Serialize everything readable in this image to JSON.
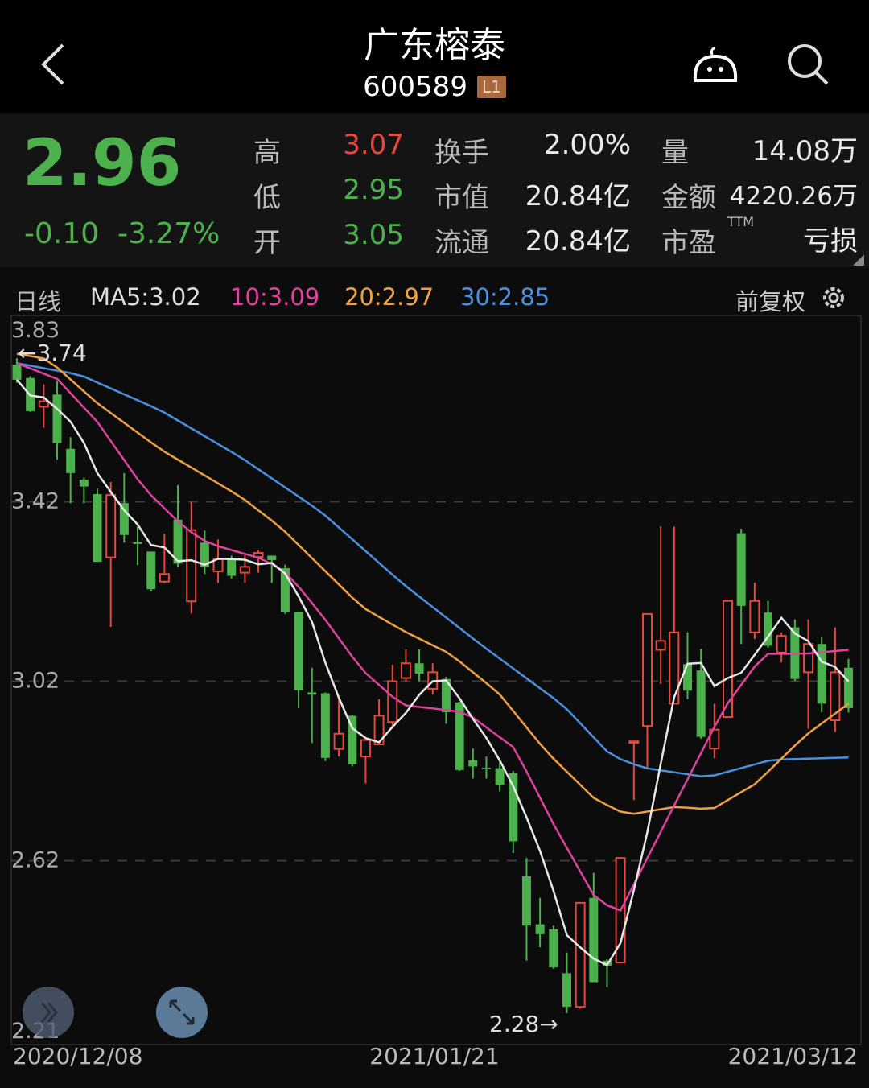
{
  "header": {
    "title": "广东榕泰",
    "code": "600589",
    "badge": "L1",
    "icons": [
      "back-chevron-icon",
      "robot-assistant-icon",
      "search-icon"
    ]
  },
  "quote": {
    "price": "2.96",
    "change": "-0.10",
    "change_pct": "-3.27%",
    "high_label": "高",
    "high": "3.07",
    "low_label": "低",
    "low": "2.95",
    "open_label": "开",
    "open": "3.05",
    "turnover_label": "换手",
    "turnover": "2.00%",
    "mktcap_label": "市值",
    "mktcap": "20.84亿",
    "float_label": "流通",
    "float": "20.84亿",
    "volume_label": "量",
    "volume": "14.08万",
    "amount_label": "金额",
    "amount": "4220.26万",
    "pe_label": "市盈",
    "pe_sup": "TTM",
    "pe": "亏损"
  },
  "colors": {
    "up": "#e8483c",
    "down": "#4cb04c",
    "ma5": "#e8e8e8",
    "ma10": "#e040a0",
    "ma20": "#f0a040",
    "ma30": "#4a90e0",
    "badge": "#a8693c"
  },
  "legend": {
    "period": "日线",
    "ma5": "MA5:3.02",
    "ma10": "10:3.09",
    "ma20": "20:2.97",
    "ma30": "30:2.85",
    "adjust": "前复权"
  },
  "chart_data": {
    "type": "candlestick",
    "ylim": [
      2.21,
      3.83
    ],
    "y_ticks": [
      "3.83",
      "3.42",
      "3.02",
      "2.62",
      "2.21"
    ],
    "grid": true,
    "x_labels": [
      "2020/12/08",
      "2021/01/21",
      "2021/03/12"
    ],
    "max_annotation": "←3.74",
    "min_annotation": "2.28→",
    "candles": [
      [
        3.726,
        3.692,
        3.74,
        3.685
      ],
      [
        3.696,
        3.622,
        3.7,
        3.62
      ],
      [
        3.632,
        3.644,
        3.682,
        3.585
      ],
      [
        3.659,
        3.551,
        3.689,
        3.514
      ],
      [
        3.538,
        3.484,
        3.564,
        3.417
      ],
      [
        3.469,
        3.454,
        3.474,
        3.417
      ],
      [
        3.437,
        3.286,
        3.45,
        3.286
      ],
      [
        3.296,
        3.435,
        3.464,
        3.141
      ],
      [
        3.417,
        3.346,
        3.484,
        3.329
      ],
      [
        3.33,
        3.326,
        3.366,
        3.279
      ],
      [
        3.309,
        3.225,
        3.309,
        3.22
      ],
      [
        3.242,
        3.259,
        3.349,
        3.239
      ],
      [
        3.38,
        3.282,
        3.457,
        3.275
      ],
      [
        3.198,
        3.357,
        3.42,
        3.171
      ],
      [
        3.329,
        3.275,
        3.356,
        3.259
      ],
      [
        3.265,
        3.292,
        3.336,
        3.239
      ],
      [
        3.292,
        3.255,
        3.3,
        3.249
      ],
      [
        3.262,
        3.275,
        3.302,
        3.239
      ],
      [
        3.297,
        3.306,
        3.312,
        3.262
      ],
      [
        3.3,
        3.29,
        3.3,
        3.239
      ],
      [
        3.272,
        3.175,
        3.28,
        3.17
      ],
      [
        3.175,
        3.0,
        3.175,
        2.96
      ],
      [
        2.995,
        2.99,
        3.05,
        2.882
      ],
      [
        2.993,
        2.849,
        2.995,
        2.842
      ],
      [
        2.869,
        2.903,
        2.98,
        2.852
      ],
      [
        2.943,
        2.835,
        2.945,
        2.83
      ],
      [
        2.852,
        2.889,
        2.889,
        2.792
      ],
      [
        2.879,
        2.943,
        2.98,
        2.879
      ],
      [
        2.929,
        3.02,
        3.057,
        2.92
      ],
      [
        3.027,
        3.06,
        3.091,
        3.02
      ],
      [
        3.06,
        3.037,
        3.091,
        3.02
      ],
      [
        3.003,
        3.04,
        3.06,
        2.99
      ],
      [
        3.025,
        2.951,
        3.03,
        2.925
      ],
      [
        2.973,
        2.822,
        2.975,
        2.82
      ],
      [
        2.844,
        2.83,
        2.87,
        2.803
      ],
      [
        2.827,
        2.825,
        2.852,
        2.803
      ],
      [
        2.826,
        2.789,
        2.844,
        2.774
      ],
      [
        2.815,
        2.663,
        2.82,
        2.637
      ],
      [
        2.585,
        2.475,
        2.626,
        2.397
      ],
      [
        2.478,
        2.456,
        2.537,
        2.427
      ],
      [
        2.467,
        2.382,
        2.475,
        2.379
      ],
      [
        2.369,
        2.294,
        2.415,
        2.28
      ],
      [
        2.294,
        2.526,
        2.526,
        2.29
      ],
      [
        2.537,
        2.349,
        2.593,
        2.349
      ],
      [
        2.397,
        2.386,
        2.4,
        2.338
      ],
      [
        2.393,
        2.626,
        2.626,
        2.393
      ],
      [
        2.885,
        2.886,
        2.886,
        2.755
      ],
      [
        2.92,
        3.17,
        3.17,
        2.826
      ],
      [
        3.09,
        3.11,
        3.365,
        3.014
      ],
      [
        2.97,
        3.129,
        3.365,
        2.97
      ],
      [
        3.058,
        2.999,
        3.129,
        2.98
      ],
      [
        3.044,
        2.896,
        3.092,
        2.892
      ],
      [
        2.87,
        2.912,
        2.97,
        2.848
      ],
      [
        2.94,
        3.199,
        3.199,
        2.94
      ],
      [
        3.35,
        3.188,
        3.36,
        3.103
      ],
      [
        3.129,
        3.199,
        3.24,
        3.114
      ],
      [
        3.173,
        3.099,
        3.199,
        3.095
      ],
      [
        3.084,
        3.121,
        3.129,
        3.062
      ],
      [
        3.14,
        3.025,
        3.158,
        3.021
      ],
      [
        3.04,
        3.103,
        3.158,
        2.914
      ],
      [
        3.103,
        2.97,
        3.118,
        2.951
      ],
      [
        2.933,
        3.04,
        3.14,
        2.907
      ],
      [
        3.05,
        2.96,
        3.07,
        2.95
      ]
    ],
    "ma10_points": [
      [
        1,
        3.729
      ],
      [
        4,
        3.694
      ],
      [
        7,
        3.598
      ],
      [
        10.5,
        3.449
      ],
      [
        13.5,
        3.362
      ],
      [
        15.3,
        3.327
      ],
      [
        19.5,
        3.291
      ],
      [
        21.3,
        3.256
      ],
      [
        23.7,
        3.169
      ],
      [
        26.7,
        3.046
      ],
      [
        29.7,
        2.967
      ],
      [
        32.1,
        2.959
      ],
      [
        34.5,
        2.95
      ],
      [
        38.1,
        2.871
      ],
      [
        41.1,
        2.696
      ],
      [
        44.1,
        2.538
      ],
      [
        45.9,
        2.503
      ],
      [
        47.7,
        2.608
      ],
      [
        50.7,
        2.784
      ],
      [
        53.7,
        2.959
      ],
      [
        56.7,
        3.081
      ],
      [
        59.7,
        3.081
      ],
      [
        63,
        3.09
      ]
    ],
    "ma20_points": [
      [
        1,
        3.75
      ],
      [
        3.3,
        3.738
      ],
      [
        6.9,
        3.642
      ],
      [
        11.7,
        3.537
      ],
      [
        17.7,
        3.431
      ],
      [
        20.7,
        3.362
      ],
      [
        23.7,
        3.274
      ],
      [
        26.7,
        3.186
      ],
      [
        29.7,
        3.134
      ],
      [
        33.3,
        3.081
      ],
      [
        36.9,
        2.994
      ],
      [
        40.5,
        2.862
      ],
      [
        44.1,
        2.757
      ],
      [
        46.5,
        2.722
      ],
      [
        50.1,
        2.74
      ],
      [
        52.8,
        2.734
      ],
      [
        56.1,
        2.792
      ],
      [
        59.7,
        2.897
      ],
      [
        63,
        2.97
      ]
    ],
    "ma30_points": [
      [
        1,
        3.729
      ],
      [
        5.7,
        3.703
      ],
      [
        11.7,
        3.624
      ],
      [
        17.7,
        3.519
      ],
      [
        23.7,
        3.397
      ],
      [
        29.7,
        3.239
      ],
      [
        35.7,
        3.099
      ],
      [
        41.7,
        2.967
      ],
      [
        45.3,
        2.854
      ],
      [
        47.7,
        2.827
      ],
      [
        52.5,
        2.806
      ],
      [
        57.3,
        2.845
      ],
      [
        63,
        2.85
      ]
    ]
  }
}
